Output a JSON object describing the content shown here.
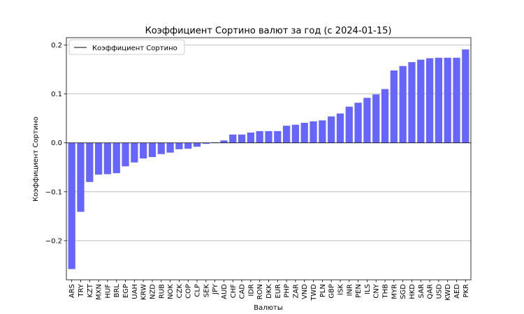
{
  "chart_data": {
    "type": "bar",
    "title": "Коэффициент Сортино валют за год (с 2024-01-15)",
    "xlabel": "Валюты",
    "ylabel": "Коэффициент Сортино",
    "ylim": [
      -0.28,
      0.215
    ],
    "yticks": [
      -0.2,
      -0.1,
      0.0,
      0.1,
      0.2
    ],
    "ytick_labels": [
      "−0.2",
      "−0.1",
      "0.0",
      "0.1",
      "0.2"
    ],
    "grid": "horizontal",
    "legend": {
      "position": "top-left",
      "entries": [
        "Коэффициент Сортино"
      ]
    },
    "colors": {
      "bar": "#6666ff",
      "zero_line": "#000000",
      "grid": "#b0b0b0",
      "legend_line": "#000000"
    },
    "categories": [
      "ARS",
      "TRY",
      "KZT",
      "MXN",
      "HUF",
      "BRL",
      "EGP",
      "UAH",
      "KRW",
      "NZD",
      "RUB",
      "NOK",
      "CZK",
      "COP",
      "CLP",
      "SEK",
      "JPY",
      "AUD",
      "CHF",
      "CAD",
      "IDR",
      "RON",
      "DKK",
      "EUR",
      "PHP",
      "ZAR",
      "VND",
      "TWD",
      "PLN",
      "GBP",
      "ISK",
      "INR",
      "PEN",
      "ILS",
      "CNY",
      "THB",
      "MYR",
      "SGD",
      "HKD",
      "SAR",
      "QAR",
      "USD",
      "KWD",
      "AED",
      "PKR"
    ],
    "values": [
      -0.258,
      -0.141,
      -0.08,
      -0.065,
      -0.064,
      -0.062,
      -0.048,
      -0.04,
      -0.032,
      -0.029,
      -0.023,
      -0.02,
      -0.013,
      -0.012,
      -0.008,
      -0.002,
      0.001,
      0.005,
      0.017,
      0.017,
      0.021,
      0.024,
      0.024,
      0.024,
      0.035,
      0.037,
      0.041,
      0.044,
      0.046,
      0.054,
      0.06,
      0.074,
      0.082,
      0.092,
      0.099,
      0.11,
      0.148,
      0.157,
      0.165,
      0.17,
      0.173,
      0.174,
      0.174,
      0.174,
      0.191
    ]
  }
}
